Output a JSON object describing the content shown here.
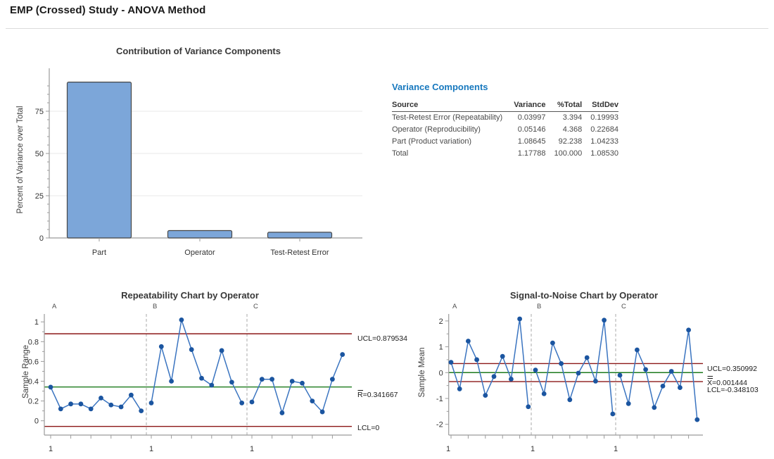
{
  "page": {
    "title": "EMP (Crossed) Study - ANOVA Method"
  },
  "variance_table": {
    "title": "Variance Components",
    "columns": [
      "Source",
      "Variance",
      "%Total",
      "StdDev"
    ],
    "rows": [
      [
        "Test-Retest Error (Repeatability)",
        "0.03997",
        "3.394",
        "0.19993"
      ],
      [
        "Operator (Reproducibility)",
        "0.05146",
        "4.368",
        "0.22684"
      ],
      [
        "Part (Product variation)",
        "1.08645",
        "92.238",
        "1.04233"
      ],
      [
        "Total",
        "1.17788",
        "100.000",
        "1.08530"
      ]
    ]
  },
  "chart_data": [
    {
      "id": "contribution",
      "type": "bar",
      "title": "Contribution of Variance Components",
      "ylabel": "Percent of Variance over Total",
      "xlabel": "",
      "categories": [
        "Part",
        "Operator",
        "Test-Retest Error"
      ],
      "values": [
        92.238,
        4.368,
        3.394
      ],
      "yticks": [
        0,
        25,
        50,
        75
      ],
      "ylim": [
        0,
        100
      ],
      "grid": "horizontal-light"
    },
    {
      "id": "repeatability",
      "type": "line",
      "title": "Repeatability Chart by Operator",
      "ylabel": "Sample Range",
      "x_section_label": "1",
      "operators": [
        "A",
        "B",
        "C"
      ],
      "series": [
        {
          "name": "A",
          "values": [
            0.34,
            0.12,
            0.17,
            0.17,
            0.12,
            0.23,
            0.16,
            0.14,
            0.26,
            0.1
          ]
        },
        {
          "name": "B",
          "values": [
            0.18,
            0.75,
            0.4,
            1.02,
            0.72,
            0.43,
            0.36,
            0.71,
            0.39,
            0.18
          ]
        },
        {
          "name": "C",
          "values": [
            0.19,
            0.42,
            0.42,
            0.08,
            0.4,
            0.38,
            0.2,
            0.09,
            0.42,
            0.67
          ]
        }
      ],
      "yticks": [
        0,
        0.2,
        0.4,
        0.6,
        0.8,
        1
      ],
      "ylim": [
        -0.1,
        1.08
      ],
      "control_lines": [
        {
          "name": "UCL",
          "label": "UCL=0.879534",
          "value": 0.879534,
          "style": "limit",
          "overbars": 0
        },
        {
          "name": "CL",
          "label": "R=0.341667",
          "value": 0.341667,
          "style": "center",
          "overbars": 1
        },
        {
          "name": "LCL",
          "label": "LCL=0",
          "value": 0,
          "style": "limit",
          "overbars": 0
        }
      ]
    },
    {
      "id": "signal_to_noise",
      "type": "line",
      "title": "Signal-to-Noise Chart by Operator",
      "ylabel": "Sample Mean",
      "x_section_label": "1",
      "operators": [
        "A",
        "B",
        "C"
      ],
      "series": [
        {
          "name": "A",
          "values": [
            0.4,
            -0.63,
            1.22,
            0.5,
            -0.88,
            -0.15,
            0.63,
            -0.25,
            2.08,
            -1.32
          ]
        },
        {
          "name": "B",
          "values": [
            0.1,
            -0.82,
            1.15,
            0.35,
            -1.05,
            -0.02,
            0.58,
            -0.33,
            2.03,
            -1.6
          ]
        },
        {
          "name": "C",
          "values": [
            -0.1,
            -1.2,
            0.88,
            0.12,
            -1.35,
            -0.52,
            0.05,
            -0.58,
            1.65,
            -1.82
          ]
        }
      ],
      "yticks": [
        -2,
        -1,
        0,
        1,
        2
      ],
      "ylim": [
        -2.3,
        2.3
      ],
      "control_lines": [
        {
          "name": "UCL",
          "label": "UCL=0.350992",
          "value": 0.350992,
          "style": "limit",
          "overbars": 0
        },
        {
          "name": "CL",
          "label": "X=0.001444",
          "value": 0.001444,
          "style": "center",
          "overbars": 2
        },
        {
          "name": "LCL",
          "label": "LCL=-0.348103",
          "value": -0.348103,
          "style": "limit",
          "overbars": 0
        }
      ]
    }
  ],
  "colors": {
    "bar_fill": "#7CA6D9",
    "bar_stroke": "#474747",
    "marker": "#1B55A0",
    "series_line": "#3A74C0",
    "limit_line": "#8C1717",
    "center_line": "#1E7B1E",
    "table_title": "#1778BE",
    "axis": "#9B9B9B",
    "grid": "#E9E9E9",
    "dashed_separator": "#A8A8A8",
    "tick_text": "#333333",
    "label_text": "#1A1A1A",
    "operator_text": "#4D4D4D"
  }
}
